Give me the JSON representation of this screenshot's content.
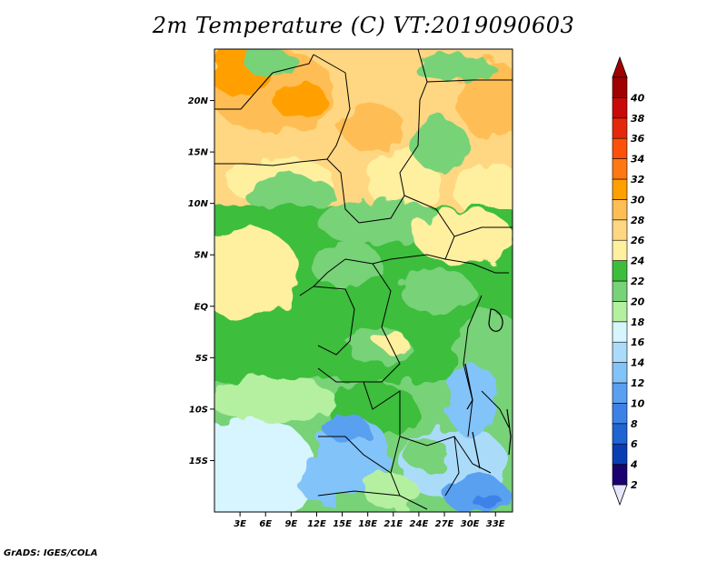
{
  "title": "2m Temperature (C) VT:2019090603",
  "credit": "GrADS: IGES/COLA",
  "map": {
    "lat_ticks": [
      {
        "label": "20N",
        "value": 20
      },
      {
        "label": "15N",
        "value": 15
      },
      {
        "label": "10N",
        "value": 10
      },
      {
        "label": "5N",
        "value": 5
      },
      {
        "label": "EQ",
        "value": 0
      },
      {
        "label": "5S",
        "value": -5
      },
      {
        "label": "10S",
        "value": -10
      },
      {
        "label": "15S",
        "value": -15
      }
    ],
    "lon_ticks": [
      {
        "label": "3E",
        "value": 3
      },
      {
        "label": "6E",
        "value": 6
      },
      {
        "label": "9E",
        "value": 9
      },
      {
        "label": "12E",
        "value": 12
      },
      {
        "label": "15E",
        "value": 15
      },
      {
        "label": "18E",
        "value": 18
      },
      {
        "label": "21E",
        "value": 21
      },
      {
        "label": "24E",
        "value": 24
      },
      {
        "label": "27E",
        "value": 27
      },
      {
        "label": "30E",
        "value": 30
      },
      {
        "label": "33E",
        "value": 33
      }
    ],
    "lon_range": [
      0,
      35
    ],
    "lat_range": [
      -20,
      25
    ]
  },
  "colorbar": {
    "levels": [
      "2",
      "4",
      "6",
      "8",
      "10",
      "12",
      "14",
      "16",
      "18",
      "20",
      "22",
      "24",
      "26",
      "28",
      "30",
      "32",
      "34",
      "36",
      "38",
      "40"
    ],
    "colors": [
      "#1a0070",
      "#0a3cb4",
      "#1e64d2",
      "#3c82e6",
      "#5aa0f0",
      "#82c3fa",
      "#aadcfa",
      "#d7f5ff",
      "#b4f0a0",
      "#78d278",
      "#3cbe3c",
      "#fff0a0",
      "#ffd782",
      "#ffbe55",
      "#ffa000",
      "#ff7814",
      "#ff500a",
      "#e6280a",
      "#c80a0a",
      "#a00000"
    ],
    "low_tip_color": "#e6e6ff",
    "high_tip_color": "#a00000"
  }
}
